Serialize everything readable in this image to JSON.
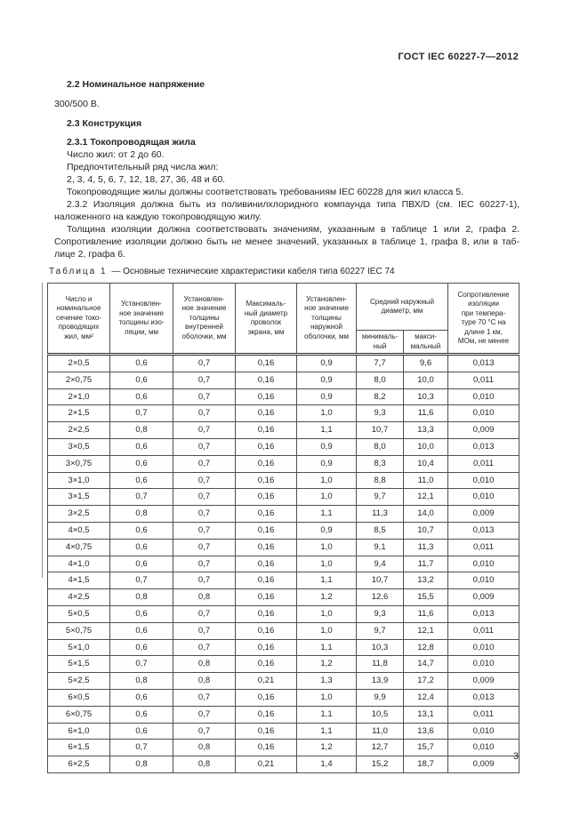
{
  "page": {
    "doc_code": "ГОСТ IEC 60227-7—2012",
    "page_number": "3"
  },
  "content": {
    "heading_2_2": "2.2 Номинальное напряжение",
    "voltage": "300/500 В.",
    "heading_2_3": "2.3 Конструкция",
    "heading_2_3_1": "2.3.1 Токопроводящая жила",
    "lines": [
      {
        "text": "Число жил: от 2 до 60.",
        "indent": true,
        "stretch": false
      },
      {
        "text": "Предпочтительный ряд числа жил:",
        "indent": true,
        "stretch": false
      },
      {
        "text": "2, 3, 4, 5, 6, 7, 12, 18, 27, 36, 48 и 60.",
        "indent": true,
        "stretch": false
      },
      {
        "text": "Токопроводящие жилы должны соответствовать требованиям IEC 60228 для жил класса 5.",
        "indent": true,
        "stretch": false
      },
      {
        "text": "2.3.2 Изоляция должна быть из поливинилхлоридного компаунда типа ПВХ/D (см. IEC 60227-1),",
        "indent": true,
        "stretch": true
      },
      {
        "text": "наложенного на каждую токопроводящую жилу.",
        "indent": false,
        "stretch": false
      },
      {
        "text": "Толщина изоляции должна соответствовать значениям, указанным в таблице 1 или 2, графа 2.",
        "indent": true,
        "stretch": true
      },
      {
        "text": "Сопротивление изоляции должно быть не менее значений, указанных в таблице 1, графа 8, или в таб-",
        "indent": false,
        "stretch": true
      },
      {
        "text": "лице 2, графа 6.",
        "indent": false,
        "stretch": false
      }
    ]
  },
  "table": {
    "caption_label": "Таблица 1",
    "caption_text": "— Основные технические характеристики кабеля типа 60227 IEC 74",
    "headers": {
      "col1": "Число и\nноминальное\nсечение токо-\nпроводящих\nжил, мм²",
      "col2": "Установлен-\nное значение\nтолщины изо-\nляции, мм",
      "col3": "Установлен-\nное значение\nтолщины\nвнутренней\nоболочки, мм",
      "col4": "Максималь-\nный диаметр\nпроволок\nэкрана, мм",
      "col5": "Установлен-\nное значение\nтолщины\nнаружной\nоболочки, мм",
      "col6": "Средний наружный\nдиаметр, мм",
      "col6_min": "минималь-\nный",
      "col6_max": "макси-\nмальный",
      "col7": "Сопротивление\nизоляции\nпри темпера-\nтуре 70 °С на\nдлине 1 км,\nМОм, не менее"
    },
    "groups": [
      [
        [
          "2×0,5",
          "0,6",
          "0,7",
          "0,16",
          "0,9",
          "7,7",
          "9,6",
          "0,013"
        ],
        [
          "2×0,75",
          "0,6",
          "0,7",
          "0,16",
          "0,9",
          "8,0",
          "10,0",
          "0,011"
        ],
        [
          "2×1,0",
          "0,6",
          "0,7",
          "0,16",
          "0,9",
          "8,2",
          "10,3",
          "0,010"
        ],
        [
          "2×1,5",
          "0,7",
          "0,7",
          "0,16",
          "1,0",
          "9,3",
          "11,6",
          "0,010"
        ],
        [
          "2×2,5",
          "0,8",
          "0,7",
          "0,16",
          "1,1",
          "10,7",
          "13,3",
          "0,009"
        ]
      ],
      [
        [
          "3×0,5",
          "0,6",
          "0,7",
          "0,16",
          "0,9",
          "8,0",
          "10,0",
          "0,013"
        ],
        [
          "3×0,75",
          "0,6",
          "0,7",
          "0,16",
          "0,9",
          "8,3",
          "10,4",
          "0,011"
        ],
        [
          "3×1,0",
          "0,6",
          "0,7",
          "0,16",
          "1,0",
          "8,8",
          "11,0",
          "0,010"
        ],
        [
          "3×1,5",
          "0,7",
          "0,7",
          "0,16",
          "1,0",
          "9,7",
          "12,1",
          "0,010"
        ],
        [
          "3×2,5",
          "0,8",
          "0,7",
          "0,16",
          "1,1",
          "11,3",
          "14,0",
          "0,009"
        ]
      ],
      [
        [
          "4×0,5",
          "0,6",
          "0,7",
          "0,16",
          "0,9",
          "8,5",
          "10,7",
          "0,013"
        ],
        [
          "4×0,75",
          "0,6",
          "0,7",
          "0,16",
          "1,0",
          "9,1",
          "11,3",
          "0,011"
        ],
        [
          "4×1,0",
          "0,6",
          "0,7",
          "0,16",
          "1,0",
          "9,4",
          "11,7",
          "0,010"
        ],
        [
          "4×1,5",
          "0,7",
          "0,7",
          "0,16",
          "1,1",
          "10,7",
          "13,2",
          "0,010"
        ],
        [
          "4×2,5",
          "0,8",
          "0,8",
          "0,16",
          "1,2",
          "12,6",
          "15,5",
          "0,009"
        ]
      ],
      [
        [
          "5×0,5",
          "0,6",
          "0,7",
          "0,16",
          "1,0",
          "9,3",
          "11,6",
          "0,013"
        ],
        [
          "5×0,75",
          "0,6",
          "0,7",
          "0,16",
          "1,0",
          "9,7",
          "12,1",
          "0,011"
        ],
        [
          "5×1,0",
          "0,6",
          "0,7",
          "0,16",
          "1,1",
          "10,3",
          "12,8",
          "0,010"
        ],
        [
          "5×1,5",
          "0,7",
          "0,8",
          "0,16",
          "1,2",
          "11,8",
          "14,7",
          "0,010"
        ],
        [
          "5×2,5",
          "0,8",
          "0,8",
          "0,21",
          "1,3",
          "13,9",
          "17,2",
          "0,009"
        ]
      ],
      [
        [
          "6×0,5",
          "0,6",
          "0,7",
          "0,16",
          "1,0",
          "9,9",
          "12,4",
          "0,013"
        ],
        [
          "6×0,75",
          "0,6",
          "0,7",
          "0,16",
          "1,1",
          "10,5",
          "13,1",
          "0,011"
        ],
        [
          "6×1,0",
          "0,6",
          "0,7",
          "0,16",
          "1,1",
          "11,0",
          "13,6",
          "0,010"
        ],
        [
          "6×1,5",
          "0,7",
          "0,8",
          "0,16",
          "1,2",
          "12,7",
          "15,7",
          "0,010"
        ],
        [
          "6×2,5",
          "0,8",
          "0,8",
          "0,21",
          "1,4",
          "15,2",
          "18,7",
          "0,009"
        ]
      ]
    ]
  }
}
